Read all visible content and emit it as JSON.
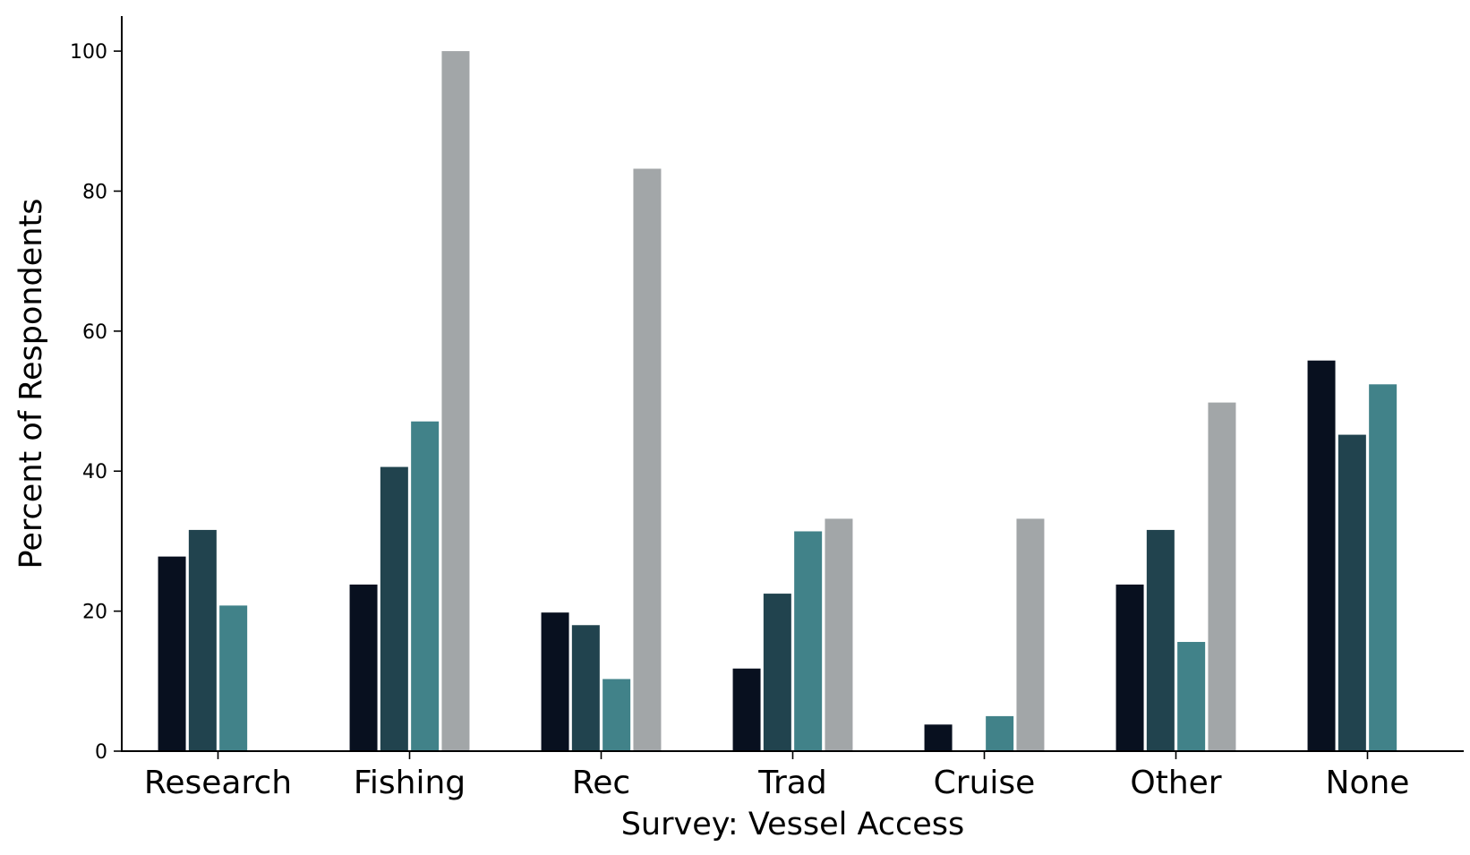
{
  "chart_data": {
    "type": "bar",
    "title": "",
    "xlabel": "Survey: Vessel Access",
    "ylabel": "Percent of Respondents",
    "ylim": [
      0,
      105
    ],
    "yticks": [
      0,
      20,
      40,
      60,
      80,
      100
    ],
    "grid": false,
    "legend": "none",
    "categories": [
      "Research",
      "Fishing",
      "Rec",
      "Trad",
      "Cruise",
      "Other",
      "None"
    ],
    "series": [
      {
        "color": "#08101f",
        "values": [
          27.8,
          23.8,
          19.8,
          11.8,
          3.8,
          23.8,
          55.8
        ]
      },
      {
        "color": "#21434e",
        "values": [
          31.6,
          40.6,
          18.0,
          22.5,
          0,
          31.6,
          45.2
        ]
      },
      {
        "color": "#418289",
        "values": [
          20.8,
          47.1,
          10.3,
          31.4,
          5.0,
          15.6,
          52.4
        ]
      },
      {
        "color": "#a2a6a8",
        "values": [
          0,
          100,
          83.2,
          33.2,
          33.2,
          49.8,
          0
        ]
      }
    ]
  }
}
